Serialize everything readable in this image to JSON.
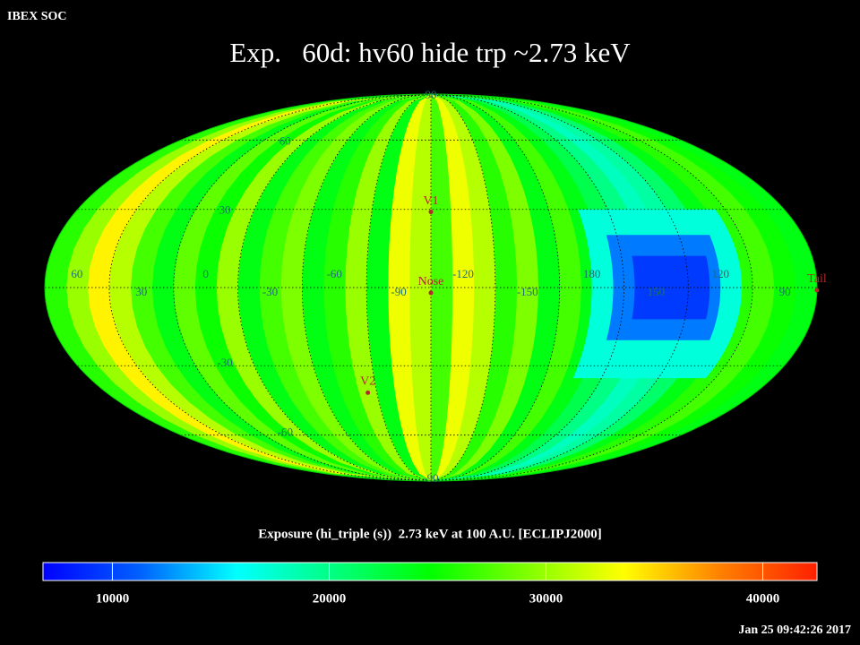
{
  "header": {
    "org": "IBEX SOC",
    "title": "Exp.   60d: hv60 hide trp ~2.73 keV",
    "timestamp": "Jan 25 09:42:26 2017"
  },
  "chart_data": {
    "type": "skymap",
    "projection": "mollweide",
    "center_lon": -105,
    "colorbar_label": "Exposure (hi_triple (s))  2.73 keV at 100 A.U. [ECLIPJ2000]",
    "clim": [
      6800,
      42500
    ],
    "cticks": [
      10000,
      20000,
      30000,
      40000
    ],
    "colormap": [
      "#0000ff",
      "#0060ff",
      "#00ffff",
      "#00ff80",
      "#00ff00",
      "#80ff00",
      "#ffff00",
      "#ff8000",
      "#ff2000"
    ],
    "xticks": [
      60,
      30,
      0,
      -30,
      -60,
      -90,
      -120,
      -150,
      180,
      150,
      120,
      90
    ],
    "yticks": [
      90,
      60,
      30,
      -30,
      -60,
      -90
    ],
    "lon_bins": [
      -285,
      -275,
      -265,
      -255,
      -245,
      -235,
      -225,
      -215,
      -205,
      -195,
      -185,
      -175,
      -165,
      -155,
      -145,
      -135,
      -125,
      -115,
      -105,
      -95,
      -85,
      -75,
      -65,
      -55,
      -45,
      -35,
      -25,
      -15,
      -5,
      5,
      15,
      25,
      35,
      45,
      55,
      65,
      75
    ],
    "values": [
      24000,
      25000,
      27000,
      26000,
      24000,
      21000,
      19000,
      18000,
      20000,
      22000,
      24000,
      27000,
      24000,
      29000,
      26000,
      31000,
      33000,
      27000,
      31000,
      33000,
      24000,
      30000,
      26000,
      24000,
      29000,
      27000,
      24000,
      30000,
      25000,
      28000,
      24000,
      27000,
      31000,
      34000,
      30000,
      26000
    ],
    "patches": [
      {
        "lon": [
          -180,
          -250
        ],
        "lat": [
          -35,
          30
        ],
        "value": 17000
      },
      {
        "lon": [
          -190,
          -240
        ],
        "lat": [
          -20,
          20
        ],
        "value": 12000
      },
      {
        "lon": [
          -200,
          -235
        ],
        "lat": [
          -12,
          12
        ],
        "value": 9500
      }
    ],
    "markers": [
      {
        "label": "V1",
        "lon": -105,
        "lat": 29
      },
      {
        "label": "Nose",
        "lon": -105,
        "lat": -2
      },
      {
        "label": "V2",
        "lon": -70,
        "lat": -41
      },
      {
        "label": "Tail",
        "lon": 75,
        "lat": -1
      }
    ]
  }
}
